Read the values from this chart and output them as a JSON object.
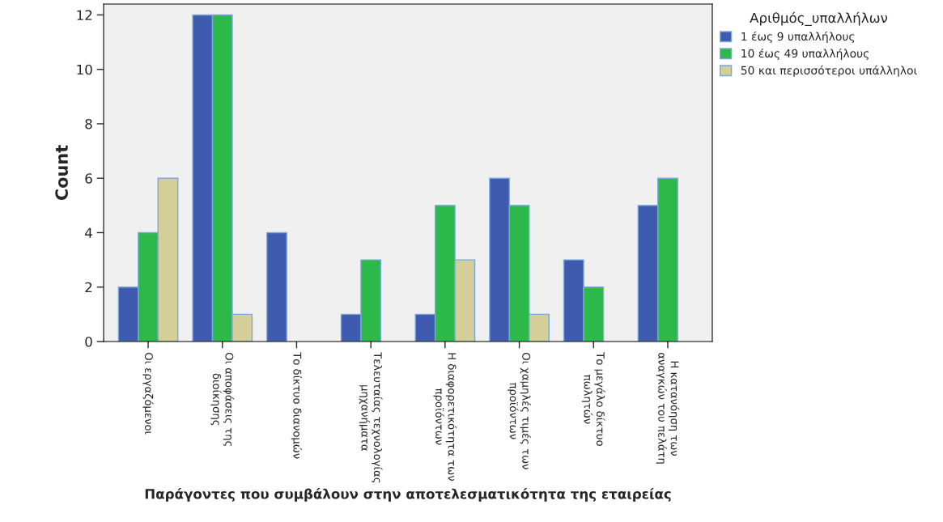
{
  "chart_data": {
    "type": "bar",
    "xlabel": "Παράγοντες που συμβάλουν στην αποτελεσματικότητα της εταιρείας",
    "ylabel": "Count",
    "legend_title": "Αριθμός_υπαλλήλων",
    "categories": [
      "Οι εργαζόμενοι",
      "Οι αποφάσεις της\nδιοίκησης",
      "Το δίκτυο διανομών",
      "Τελευταίας τεχνολογίας\nμηχανήματα",
      "Η διαφορετικότητα των\nπροϊόντων",
      "Οι χαμηλές τιμές των\nπροϊόντων",
      "Το μεγάλο δίκτυο\nπωλητών",
      "Η κατανόηση των\nαναγκών του πελάτη"
    ],
    "series": [
      {
        "name": "1 έως 9 υπαλλήλους",
        "color": "#3f5bb0",
        "values": [
          2,
          12,
          4,
          1,
          1,
          6,
          3,
          5
        ]
      },
      {
        "name": "10 έως 49 υπαλλήλους",
        "color": "#2db84a",
        "values": [
          4,
          12,
          null,
          3,
          5,
          5,
          2,
          6
        ]
      },
      {
        "name": "50 και περισσότεροι υπάλληλοι",
        "color": "#d4cf99",
        "values": [
          6,
          1,
          null,
          null,
          3,
          1,
          null,
          null
        ]
      }
    ],
    "ylim": [
      0,
      12.4
    ],
    "yticks": [
      0,
      2,
      4,
      6,
      8,
      10,
      12
    ],
    "grid": false,
    "legend": "top right"
  }
}
